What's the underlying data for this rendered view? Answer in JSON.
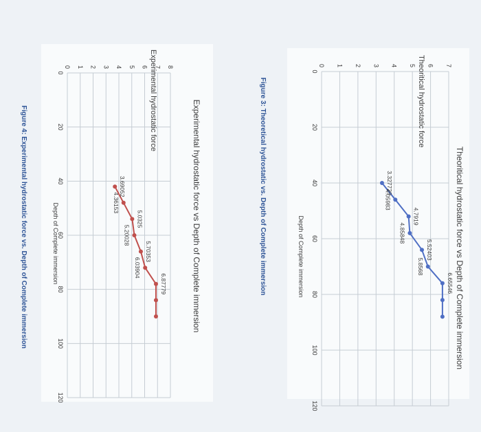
{
  "colors": {
    "page_background": "#eef2f6",
    "chart_panel": "#f9fbfc",
    "grid": "#c5ccd3",
    "text": "#3b3b3b",
    "theoretical_line": "#4f6fc4",
    "experimental_line": "#c0504d",
    "caption": "#2f5597"
  },
  "captions": {
    "figure3": "Figure 3: Theoretical hydrostatic vs. Depth of Complete immersion",
    "figure4": "Figure 4: Experimental hydrostatic force vs. Depth of Complete immersion"
  },
  "chart_data": [
    {
      "type": "line",
      "title": "Theoritical hydrostatic force vs Depth of Complete immersion",
      "xlabel": "Depth of Complete immersion",
      "ylabel": "Theoritical hydrostatic force",
      "xlim": [
        0,
        120
      ],
      "ylim": [
        0,
        7
      ],
      "x_ticks": [
        "0",
        "20",
        "40",
        "60",
        "80",
        "100",
        "120"
      ],
      "y_ticks": [
        "0",
        "1",
        "2",
        "3",
        "4",
        "5",
        "6",
        "7"
      ],
      "grid": true,
      "series": [
        {
          "x": [
            40,
            46,
            52,
            58,
            64,
            70,
            76,
            82,
            88
          ],
          "values": [
            3.327729,
            4.05983,
            4.7919,
            4.85848,
            5.52403,
            5.8568,
            6.65546,
            6.65546,
            6.65546
          ],
          "labels": [
            "3.327729",
            "4.05983",
            "4.7919",
            "4.85848",
            "5.52403",
            "5.8568",
            "6.65546",
            "",
            ""
          ]
        }
      ]
    },
    {
      "type": "line",
      "title": "Experimental hydrostatic force vs Depth of Complete immersion",
      "xlabel": "Depth of Complete immersion",
      "ylabel": "Experimental hydrostatic force",
      "xlim": [
        0,
        120
      ],
      "ylim": [
        0,
        8
      ],
      "x_ticks": [
        "0",
        "20",
        "40",
        "60",
        "80",
        "100",
        "120"
      ],
      "y_ticks": [
        "0",
        "1",
        "2",
        "3",
        "4",
        "5",
        "6",
        "7",
        "8"
      ],
      "grid": true,
      "series": [
        {
          "x": [
            42,
            48,
            54,
            60,
            66,
            72,
            78,
            84,
            90
          ],
          "values": [
            3.69052,
            4.36153,
            5.0325,
            5.20028,
            5.70353,
            6.03904,
            6.87779,
            6.87779,
            6.87779
          ],
          "labels": [
            "3.69052",
            "4.36153",
            "5.0325",
            "5.20028",
            "5.70353",
            "6.03904",
            "6.87779",
            "",
            ""
          ]
        }
      ]
    }
  ]
}
